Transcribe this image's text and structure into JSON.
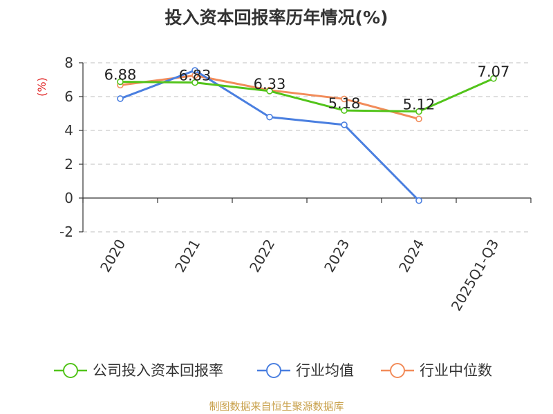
{
  "chart_data": {
    "type": "line",
    "title": "投入资本回报率历年情况(%)",
    "ylabel": "(%)",
    "xlabel": "",
    "categories": [
      "2020",
      "2021",
      "2022",
      "2023",
      "2024",
      "2025Q1-Q3"
    ],
    "ylim": [
      -2,
      8
    ],
    "yticks": [
      -2,
      0,
      2,
      4,
      6,
      8
    ],
    "grid": true,
    "series": [
      {
        "name": "公司投入资本回报率",
        "color": "#52c41a",
        "values": [
          6.88,
          6.83,
          6.33,
          5.18,
          5.12,
          7.07
        ],
        "labels": [
          "6.88",
          "6.83",
          "6.33",
          "5.18",
          "5.12",
          "7.07"
        ]
      },
      {
        "name": "行业均值",
        "color": "#4a7fe0",
        "values": [
          5.88,
          7.55,
          4.79,
          4.33,
          -0.15,
          null
        ]
      },
      {
        "name": "行业中位数",
        "color": "#f28c5a",
        "values": [
          6.68,
          7.25,
          6.38,
          5.86,
          4.68,
          null
        ]
      }
    ],
    "legend_position": "bottom"
  },
  "footer": "制图数据来自恒生聚源数据库"
}
